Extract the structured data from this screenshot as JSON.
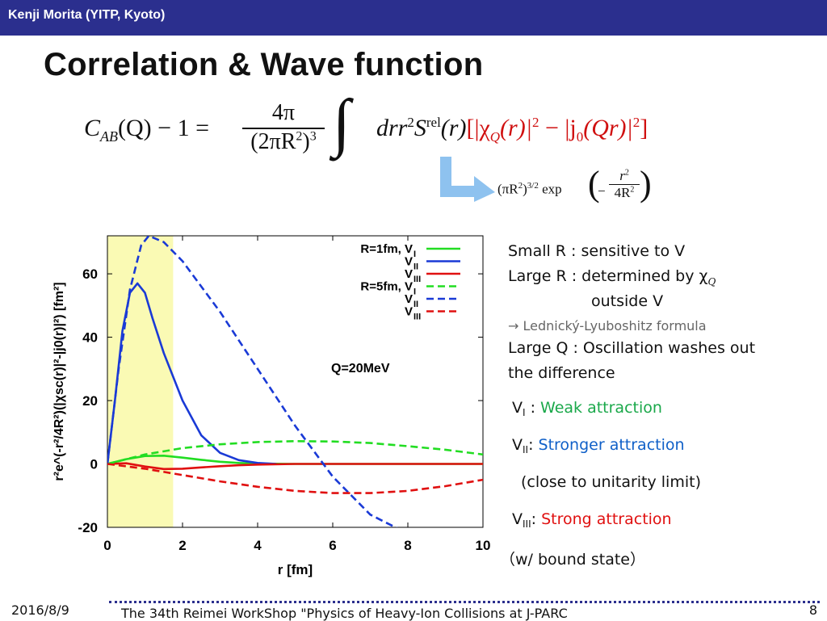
{
  "header": {
    "author": "Kenji Morita (YITP, Kyoto)",
    "title": "Correlation & Wave function"
  },
  "equation": {
    "lhs_C": "C",
    "lhs_AB": "AB",
    "lhs_rest": "(Q) − 1 =",
    "frac_num": "4π",
    "frac_den": "(2πR",
    "integrand": "drr",
    "S": "S",
    "rel": "rel",
    "r_arg": "(r)",
    "bracket_content": "[|χ",
    "Q_sub": "Q",
    "rest": "(r)|",
    "minus": " − |j",
    "zero_sub": "0",
    "Qr": "(Qr)|",
    "close": "]",
    "source_fn": "(πR",
    "source_pow": ")",
    "exp": "exp",
    "r2": "r",
    "den4": "4R"
  },
  "notes": {
    "line1": "Small R : sensitive to V",
    "line2": "Large R : determined by χ",
    "line2_sub": "Q",
    "line3": "outside V",
    "line4": "→ Lednický-Lyuboshitz formula",
    "line5": "Large Q : Oscillation washes   out",
    "line6": "the difference",
    "v1_label": "V",
    "v1_sub": "I",
    "v1_desc": "Weak attraction",
    "v2_label": "V",
    "v2_sub": "II",
    "v2_desc": "Stronger attraction",
    "v2_note": "(close to unitarity limit)",
    "v3_label": "V",
    "v3_sub": "III",
    "v3_desc": "Strong attraction",
    "v3_note": "（w/ bound state）",
    "colors": {
      "v1": "#1aa84a",
      "v2": "#1060c8",
      "v3": "#e01010",
      "gray": "#666666"
    }
  },
  "footer": {
    "date": "2016/8/9",
    "event": "The 34th Reimei WorkShop \"Physics of Heavy-Ion Collisions at J-PARC",
    "page": "8"
  },
  "chart_data": {
    "type": "line",
    "xlabel": "r [fm]",
    "ylabel": "r²e^(-r²/4R²)(|χsc(r)|²-|j0(r)|²) [fm²]",
    "xlim": [
      0,
      10
    ],
    "ylim": [
      -20,
      72
    ],
    "x_ticks": [
      "0",
      "2",
      "4",
      "6",
      "8",
      "10"
    ],
    "y_ticks": [
      "-20",
      "0",
      "20",
      "40",
      "60"
    ],
    "annotation": "Q=20MeV",
    "shaded_region": [
      0,
      1.75
    ],
    "shaded_color": "#fafab4",
    "legend": [
      {
        "text": "R=1fm, V",
        "sub": "I",
        "color": "#22dd22",
        "dash": false
      },
      {
        "text": "V",
        "sub": "II",
        "color": "#1a3ad6",
        "dash": false
      },
      {
        "text": "V",
        "sub": "III",
        "color": "#e01010",
        "dash": false
      },
      {
        "text": "R=5fm, V",
        "sub": "I",
        "color": "#22dd22",
        "dash": true
      },
      {
        "text": "V",
        "sub": "II",
        "color": "#1a3ad6",
        "dash": true
      },
      {
        "text": "V",
        "sub": "III",
        "color": "#e01010",
        "dash": true
      }
    ],
    "series": [
      {
        "color": "#22dd22",
        "dash": false,
        "x": [
          0,
          0.5,
          1,
          1.5,
          2,
          2.5,
          3,
          3.5,
          4,
          5,
          6,
          8,
          10
        ],
        "y": [
          0,
          1.5,
          2.5,
          2.6,
          2,
          1.3,
          0.7,
          0.3,
          0.1,
          0,
          0,
          0,
          0
        ]
      },
      {
        "color": "#1a3ad6",
        "dash": false,
        "x": [
          0,
          0.2,
          0.4,
          0.6,
          0.8,
          1.0,
          1.2,
          1.5,
          2.0,
          2.5,
          3.0,
          3.5,
          4.0,
          4.5
        ],
        "y": [
          0,
          20,
          42,
          54,
          57,
          54,
          46,
          35,
          20,
          9,
          3.5,
          1.2,
          0.3,
          0
        ]
      },
      {
        "color": "#e01010",
        "dash": false,
        "x": [
          0,
          0.5,
          1,
          1.5,
          2,
          2.5,
          3,
          3.5,
          4,
          5,
          6,
          8,
          10
        ],
        "y": [
          0,
          0.2,
          -0.8,
          -1.6,
          -1.5,
          -1.1,
          -0.7,
          -0.4,
          -0.2,
          0,
          0,
          0,
          0
        ]
      },
      {
        "color": "#22dd22",
        "dash": true,
        "x": [
          0,
          1,
          2,
          3,
          4,
          5,
          6,
          7,
          8,
          9,
          10
        ],
        "y": [
          0,
          3,
          5,
          6.2,
          6.9,
          7.2,
          7.1,
          6.6,
          5.6,
          4.5,
          3.0
        ]
      },
      {
        "color": "#1a3ad6",
        "dash": true,
        "x": [
          0,
          0.3,
          0.6,
          0.9,
          1.1,
          1.5,
          2,
          3,
          4,
          5,
          6,
          7,
          8
        ],
        "y": [
          0,
          30,
          55,
          69,
          72,
          70,
          64,
          48,
          30,
          12,
          -4,
          -16,
          -22
        ]
      },
      {
        "color": "#e01010",
        "dash": true,
        "x": [
          0,
          1,
          2,
          3,
          4,
          5,
          6,
          7,
          8,
          9,
          10
        ],
        "y": [
          0,
          -1.5,
          -3.5,
          -5.5,
          -7.2,
          -8.5,
          -9.2,
          -9.2,
          -8.5,
          -7.0,
          -5.0
        ]
      }
    ]
  }
}
